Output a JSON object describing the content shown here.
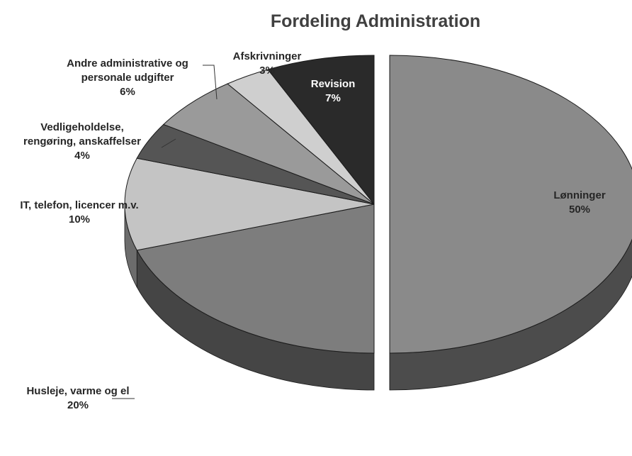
{
  "chart_data": {
    "type": "pie",
    "title": "Fordeling Administration",
    "slices": [
      {
        "label": "Lønninger",
        "value": 50,
        "display": "50%",
        "color": "#8a8a8a",
        "exploded": true
      },
      {
        "label": "Husleje, varme og el",
        "value": 20,
        "display": "20%",
        "color": "#7d7d7d",
        "exploded": false
      },
      {
        "label": "IT, telefon, licencer m.v.",
        "value": 10,
        "display": "10%",
        "color": "#c4c4c4",
        "exploded": false
      },
      {
        "label": "Vedligeholdelse, rengøring, anskaffelser",
        "value": 4,
        "display": "4%",
        "color": "#555555",
        "exploded": false
      },
      {
        "label": "Andre administrative og personale udgifter",
        "value": 6,
        "display": "6%",
        "color": "#9a9a9a",
        "exploded": false
      },
      {
        "label": "Afskrivninger",
        "value": 3,
        "display": "3%",
        "color": "#cfcfcf",
        "exploded": false
      },
      {
        "label": "Revision",
        "value": 7,
        "display": "7%",
        "color": "#2a2a2a",
        "exploded": false
      }
    ],
    "legend": "none",
    "style": "3d-exploded"
  }
}
